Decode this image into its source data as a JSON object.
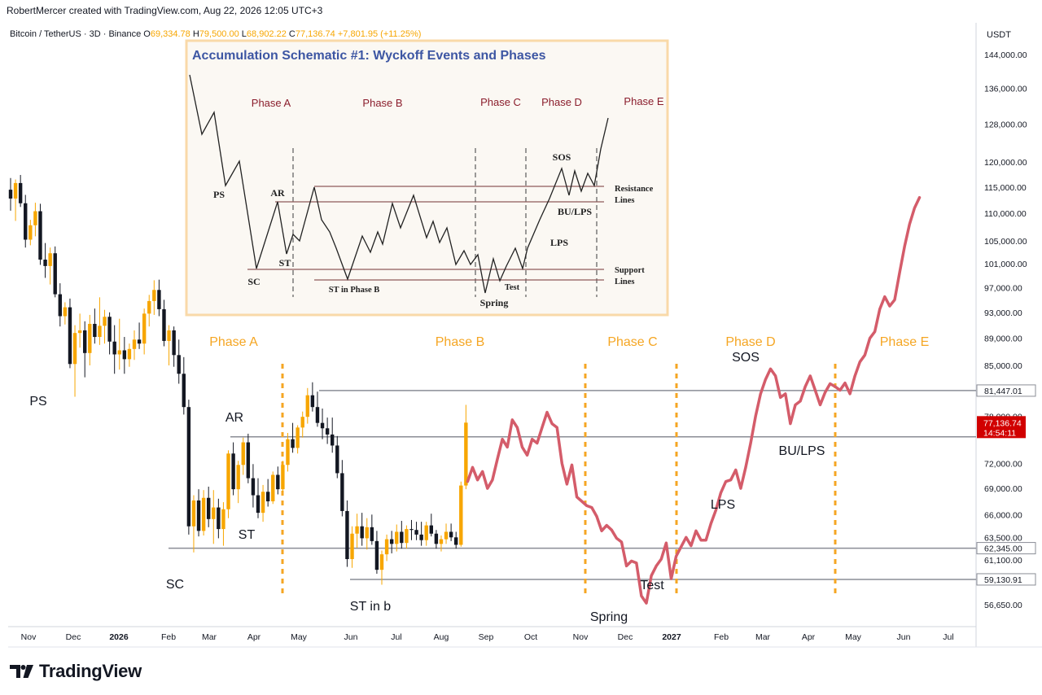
{
  "header": {
    "attribution": "RobertMercer created with TradingView.com, Aug 22, 2026 12:05 UTC+3",
    "symbol": "Bitcoin / TetherUS · 3D · Binance",
    "o_label": "O",
    "o_value": "69,334.78",
    "h_label": "H",
    "h_value": "79,500.00",
    "l_label": "L",
    "l_value": "68,902.22",
    "c_label": "C",
    "c_value": "77,136.74",
    "change": "+7,801.95 (+11.25%)"
  },
  "colors": {
    "bull": "#f7a600",
    "bear": "#131722",
    "projection": "#d45c6a",
    "phase": "#f5a623",
    "inset_border": "#f9d9a8",
    "inset_title": "#3d56a3",
    "inset_phase": "#8b1e2d",
    "price_tag": "#d10000"
  },
  "brand": {
    "name": "TradingView"
  },
  "chart_data": [
    {
      "type": "candlestick",
      "title": "Bitcoin / TetherUS · 3D · Binance",
      "y_unit": "USDT",
      "y_scale": "log",
      "ylim": [
        54000,
        150000
      ],
      "x_ticks": [
        "Nov",
        "Dec",
        "2026",
        "Feb",
        "Mar",
        "Apr",
        "May",
        "Jun",
        "Jul",
        "Aug",
        "Sep",
        "Oct",
        "Nov",
        "Dec",
        "2027",
        "Feb",
        "Mar",
        "Apr",
        "May",
        "Jun",
        "Jul"
      ],
      "y_ticks": [
        "144,000.00",
        "136,000.00",
        "128,000.00",
        "120,000.00",
        "115,000.00",
        "110,000.00",
        "105,000.00",
        "101,000.00",
        "97,000.00",
        "93,000.00",
        "89,000.00",
        "85,000.00",
        "81,447.01",
        "78,000.00",
        "72,000.00",
        "69,000.00",
        "66,000.00",
        "63,500.00",
        "62,345.00",
        "61,100.00",
        "59,130.91",
        "56,650.00"
      ],
      "current_price": {
        "value": 77136.74,
        "label": "77,136.74",
        "countdown": "14:54:11"
      },
      "levels": [
        {
          "value": 81447.01,
          "label": "81,447.01"
        },
        {
          "value": 62345.0,
          "label": "62,345.00"
        },
        {
          "value": 59130.91,
          "label": "59,130.91"
        },
        {
          "value": 75300
        }
      ],
      "candles": [
        [
          114500,
          116800,
          110500,
          112800
        ],
        [
          112800,
          116500,
          108600,
          115800
        ],
        [
          115800,
          117400,
          111200,
          111900
        ],
        [
          111900,
          113500,
          103800,
          105200
        ],
        [
          105200,
          108800,
          104200,
          107800
        ],
        [
          107800,
          112000,
          105800,
          110400
        ],
        [
          110400,
          111800,
          100800,
          101700
        ],
        [
          101700,
          104600,
          98600,
          100600
        ],
        [
          100600,
          103800,
          97500,
          102800
        ],
        [
          102800,
          104000,
          95400,
          95900
        ],
        [
          95900,
          97700,
          90800,
          92400
        ],
        [
          92400,
          94600,
          91100,
          93800
        ],
        [
          93800,
          95200,
          84600,
          85200
        ],
        [
          85200,
          91000,
          80600,
          89800
        ],
        [
          89800,
          92800,
          87600,
          90200
        ],
        [
          90200,
          91600,
          83300,
          86800
        ],
        [
          86800,
          92600,
          85000,
          91200
        ],
        [
          91200,
          93600,
          88200,
          89200
        ],
        [
          89200,
          95400,
          88000,
          90900
        ],
        [
          90900,
          93400,
          88200,
          92300
        ],
        [
          92300,
          93000,
          86600,
          88500
        ],
        [
          88500,
          91000,
          83800,
          86600
        ],
        [
          86600,
          92000,
          84400,
          87200
        ],
        [
          87200,
          89200,
          83800,
          85900
        ],
        [
          85900,
          88200,
          84800,
          87400
        ],
        [
          87400,
          90200,
          85800,
          88800
        ],
        [
          88800,
          91400,
          87400,
          88200
        ],
        [
          88200,
          93600,
          86600,
          92800
        ],
        [
          92800,
          95800,
          90800,
          94800
        ],
        [
          94800,
          98200,
          92600,
          96600
        ],
        [
          96600,
          98300,
          92400,
          93500
        ],
        [
          93500,
          95000,
          87800,
          88600
        ],
        [
          88600,
          91000,
          85000,
          90200
        ],
        [
          90200,
          90800,
          84800,
          86500
        ],
        [
          86500,
          88800,
          82400,
          83800
        ],
        [
          83800,
          86200,
          78200,
          79200
        ],
        [
          79200,
          80200,
          63800,
          64700
        ],
        [
          64700,
          68200,
          61900,
          67600
        ],
        [
          67600,
          68900,
          63600,
          64200
        ],
        [
          64200,
          68800,
          63700,
          67900
        ],
        [
          67900,
          69200,
          64600,
          65500
        ],
        [
          65500,
          68800,
          62800,
          66800
        ],
        [
          66800,
          67800,
          63400,
          64400
        ],
        [
          64400,
          67400,
          62600,
          66600
        ],
        [
          66600,
          73600,
          65600,
          73200
        ],
        [
          73200,
          74600,
          68200,
          68900
        ],
        [
          68900,
          72300,
          67300,
          71800
        ],
        [
          71800,
          75200,
          70600,
          74600
        ],
        [
          74600,
          75700,
          69600,
          70200
        ],
        [
          70200,
          71900,
          66800,
          68200
        ],
        [
          68200,
          70200,
          65600,
          66200
        ],
        [
          66200,
          69400,
          65200,
          68600
        ],
        [
          68600,
          70100,
          66900,
          67500
        ],
        [
          67500,
          71000,
          67200,
          70600
        ],
        [
          70600,
          71600,
          68300,
          68900
        ],
        [
          68900,
          72300,
          68600,
          71800
        ],
        [
          71800,
          75800,
          71000,
          75000
        ],
        [
          75000,
          77100,
          73300,
          73900
        ],
        [
          73900,
          76800,
          73200,
          76500
        ],
        [
          76500,
          78600,
          75200,
          77900
        ],
        [
          77900,
          81800,
          77000,
          80800
        ],
        [
          80800,
          82600,
          78600,
          79200
        ],
        [
          79200,
          81300,
          76600,
          77100
        ],
        [
          77100,
          79000,
          75000,
          76400
        ],
        [
          76400,
          77800,
          74400,
          75600
        ],
        [
          75600,
          77800,
          73300,
          74200
        ],
        [
          74200,
          75400,
          70200,
          70800
        ],
        [
          70800,
          72400,
          65800,
          66400
        ],
        [
          66400,
          67600,
          60400,
          61200
        ],
        [
          61200,
          64700,
          60300,
          63900
        ],
        [
          63900,
          66100,
          62400,
          64700
        ],
        [
          64700,
          66200,
          62600,
          63400
        ],
        [
          63400,
          65600,
          62200,
          64600
        ],
        [
          64600,
          66000,
          62700,
          63100
        ],
        [
          63100,
          64200,
          59700,
          60100
        ],
        [
          60100,
          62100,
          58600,
          61700
        ],
        [
          61700,
          63800,
          61000,
          63300
        ],
        [
          63300,
          64200,
          61800,
          62800
        ],
        [
          62800,
          64900,
          62000,
          64100
        ],
        [
          64100,
          65300,
          62300,
          62900
        ],
        [
          62900,
          64800,
          62300,
          64400
        ],
        [
          64400,
          65400,
          63200,
          64300
        ],
        [
          64300,
          65200,
          63200,
          63800
        ],
        [
          63800,
          65200,
          62600,
          63200
        ],
        [
          63200,
          65200,
          62600,
          64800
        ],
        [
          64800,
          66100,
          63600,
          63900
        ],
        [
          63900,
          64300,
          62300,
          62800
        ],
        [
          62800,
          63700,
          62000,
          63300
        ],
        [
          63300,
          65000,
          62800,
          64100
        ],
        [
          64100,
          65000,
          63100,
          63500
        ],
        [
          63500,
          64100,
          62300,
          62700
        ],
        [
          62700,
          69800,
          62500,
          69334.78
        ],
        [
          69334.78,
          79500,
          68902.22,
          77136.74
        ]
      ],
      "projection": [
        [
          69800,
          "",
          ""
        ],
        [
          71500,
          "",
          ""
        ],
        [
          70000,
          "",
          ""
        ],
        [
          71000,
          "",
          ""
        ],
        [
          69000,
          "",
          ""
        ],
        [
          70000,
          "",
          ""
        ],
        [
          72500,
          "",
          ""
        ],
        [
          75000,
          "",
          ""
        ],
        [
          74000,
          "",
          ""
        ],
        [
          77500,
          "",
          ""
        ],
        [
          76500,
          "",
          ""
        ],
        [
          74000,
          "",
          ""
        ],
        [
          73000,
          "",
          ""
        ],
        [
          75000,
          "",
          ""
        ],
        [
          74500,
          "",
          ""
        ],
        [
          76500,
          "",
          ""
        ],
        [
          78500,
          "",
          ""
        ],
        [
          77000,
          "",
          ""
        ],
        [
          76500,
          "",
          ""
        ],
        [
          72000,
          "",
          ""
        ],
        [
          69500,
          "",
          ""
        ],
        [
          71800,
          "",
          ""
        ],
        [
          68000,
          "",
          ""
        ],
        [
          67500,
          "",
          ""
        ],
        [
          67000,
          "",
          ""
        ],
        [
          66800,
          "",
          ""
        ],
        [
          65800,
          "",
          ""
        ],
        [
          64200,
          "",
          ""
        ],
        [
          64800,
          "",
          ""
        ],
        [
          64300,
          "",
          ""
        ],
        [
          63400,
          "",
          ""
        ],
        [
          63000,
          "",
          ""
        ],
        [
          60500,
          "",
          ""
        ],
        [
          61000,
          "",
          ""
        ],
        [
          60800,
          "",
          ""
        ],
        [
          57500,
          "",
          ""
        ],
        [
          56800,
          "",
          ""
        ],
        [
          59500,
          "",
          ""
        ],
        [
          60500,
          "",
          ""
        ],
        [
          61200,
          "",
          ""
        ],
        [
          62900,
          "",
          ""
        ],
        [
          59200,
          "",
          ""
        ],
        [
          61500,
          "",
          ""
        ],
        [
          62500,
          "",
          ""
        ],
        [
          63500,
          "",
          ""
        ],
        [
          62600,
          "",
          ""
        ],
        [
          64200,
          "",
          ""
        ],
        [
          63200,
          "",
          ""
        ],
        [
          63200,
          "",
          ""
        ],
        [
          65000,
          "",
          ""
        ],
        [
          66500,
          "",
          ""
        ],
        [
          68500,
          "",
          ""
        ],
        [
          69800,
          "",
          ""
        ],
        [
          70000,
          "",
          ""
        ],
        [
          71200,
          "",
          ""
        ],
        [
          69000,
          "",
          ""
        ],
        [
          71500,
          "",
          ""
        ],
        [
          74500,
          "",
          ""
        ],
        [
          78000,
          "",
          ""
        ],
        [
          81000,
          "",
          ""
        ],
        [
          83000,
          "",
          ""
        ],
        [
          84500,
          "",
          ""
        ],
        [
          83500,
          "",
          ""
        ],
        [
          80500,
          "",
          ""
        ],
        [
          81000,
          "",
          ""
        ],
        [
          77000,
          "",
          ""
        ],
        [
          79500,
          "",
          ""
        ],
        [
          80000,
          "",
          ""
        ],
        [
          82000,
          "",
          ""
        ],
        [
          83500,
          "",
          ""
        ],
        [
          81500,
          "",
          ""
        ],
        [
          79500,
          "",
          ""
        ],
        [
          81200,
          "",
          ""
        ],
        [
          82400,
          "",
          ""
        ],
        [
          82000,
          "",
          ""
        ],
        [
          81500,
          "",
          ""
        ],
        [
          82500,
          "",
          ""
        ],
        [
          81000,
          "",
          ""
        ],
        [
          83500,
          "",
          ""
        ],
        [
          85500,
          "",
          ""
        ],
        [
          86500,
          "",
          ""
        ],
        [
          89000,
          "",
          ""
        ],
        [
          90000,
          "",
          ""
        ],
        [
          93500,
          "",
          ""
        ],
        [
          95500,
          "",
          ""
        ],
        [
          94000,
          "",
          ""
        ],
        [
          95000,
          "",
          ""
        ],
        [
          99500,
          "",
          ""
        ],
        [
          104000,
          "",
          ""
        ],
        [
          108000,
          "",
          ""
        ],
        [
          111000,
          "",
          ""
        ],
        [
          113000,
          "",
          ""
        ]
      ],
      "phase_labels": [
        "Phase A",
        "Phase B",
        "Phase C",
        "Phase D",
        "Phase E"
      ],
      "event_labels": [
        "PS",
        "SC",
        "AR",
        "ST",
        "ST in b",
        "Spring",
        "Test",
        "LPS",
        "SOS",
        "BU/LPS"
      ]
    },
    {
      "type": "line",
      "title": "Accumulation Schematic #1: Wyckoff Events and Phases",
      "phases": [
        "Phase A",
        "Phase B",
        "Phase C",
        "Phase D",
        "Phase E"
      ],
      "events": [
        "PS",
        "AR",
        "ST",
        "SC",
        "ST in Phase B",
        "Spring",
        "Test",
        "LPS",
        "BU/LPS",
        "SOS"
      ],
      "line_labels": [
        "Resistance\nLines",
        "Support\nLines"
      ]
    }
  ]
}
